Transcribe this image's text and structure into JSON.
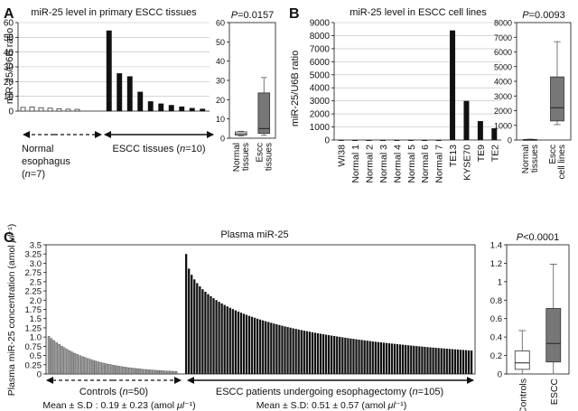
{
  "panel_labels": {
    "a": "A",
    "b": "B",
    "c": "C"
  },
  "chart_data": [
    {
      "id": "A-bar",
      "type": "bar",
      "title": "miR-25 level in primary ESCC tissues",
      "ylabel": "miR-25/U6B ratio",
      "ylim": [
        0,
        60
      ],
      "yticks": [
        0,
        10,
        20,
        30,
        40,
        50,
        60
      ],
      "grid": true,
      "series": [
        {
          "name": "Normal esophagus",
          "values": [
            2.5,
            2.8,
            2.3,
            2.0,
            1.6,
            1.3,
            1.2
          ],
          "fill": "#ffffff"
        },
        {
          "name": "ESCC tissues",
          "values": [
            54.5,
            25.5,
            23.5,
            13.0,
            6.5,
            5.0,
            4.0,
            3.0,
            2.0,
            1.5
          ],
          "fill": "#111111"
        }
      ],
      "group_labels": [
        {
          "text": "Normal",
          "prefix": "",
          "italic": "",
          "suffix": ""
        },
        {
          "text": "esophagus",
          "prefix": "",
          "italic": "",
          "suffix": ""
        },
        {
          "text": "",
          "prefix": "(",
          "italic": "n",
          "suffix": "=7)"
        },
        {
          "text": "",
          "prefix": "ESCC tissues (",
          "italic": "n",
          "suffix": "=10)"
        }
      ]
    },
    {
      "id": "A-box",
      "type": "box",
      "title_prefix": "",
      "title_italic": "P",
      "title_suffix": "=0.0157",
      "ylim": [
        0,
        60
      ],
      "yticks": [
        0,
        10,
        20,
        30,
        40,
        50,
        60
      ],
      "categories": [
        "Normal tissues",
        "Escc tissues"
      ],
      "category_lines": [
        [
          "Normal",
          "tissues"
        ],
        [
          "Escc",
          "tissues"
        ]
      ],
      "boxes": [
        {
          "name": "Normal tissues",
          "whisker_low": 1.2,
          "q1": 1.6,
          "median": 2.3,
          "q3": 3.3,
          "whisker_high": 3.6,
          "fill": "#ffffff"
        },
        {
          "name": "Escc tissues",
          "whisker_low": 1.5,
          "q1": 2.5,
          "median": 5.0,
          "q3": 23.5,
          "whisker_high": 31.5,
          "fill": "#777777"
        }
      ]
    },
    {
      "id": "B-bar",
      "type": "bar",
      "title": "miR-25 level in ESCC cell lines",
      "ylabel": "miR-25/U6B ratio",
      "ylim": [
        0,
        9000
      ],
      "yticks": [
        0,
        1000,
        2000,
        3000,
        4000,
        5000,
        6000,
        7000,
        8000,
        9000
      ],
      "grid": true,
      "categories": [
        "WI38",
        "Normal 1",
        "Normal 2",
        "Normal 3",
        "Normal 4",
        "Normal 5",
        "Normal 6",
        "Normal 7",
        "TE13",
        "KYSE70",
        "TE9",
        "TE2"
      ],
      "values": [
        10,
        5,
        5,
        5,
        5,
        5,
        5,
        5,
        8400,
        3000,
        1450,
        900
      ]
    },
    {
      "id": "B-box",
      "type": "box",
      "title_prefix": "",
      "title_italic": "P",
      "title_suffix": "=0.0093",
      "ylim": [
        0,
        8000
      ],
      "yticks": [
        0,
        1000,
        2000,
        3000,
        4000,
        5000,
        6000,
        7000,
        8000
      ],
      "categories": [
        "Normal tissues",
        "Escc cell lines"
      ],
      "category_lines": [
        [
          "Normal",
          "tissues"
        ],
        [
          "Escc",
          "cell lines"
        ]
      ],
      "boxes": [
        {
          "name": "Normal tissues",
          "whisker_low": 0,
          "q1": 0,
          "median": 10,
          "q3": 40,
          "whisker_high": 60,
          "fill": "#ffffff"
        },
        {
          "name": "Escc cell lines",
          "whisker_low": 1050,
          "q1": 1300,
          "median": 2200,
          "q3": 4300,
          "whisker_high": 6700,
          "fill": "#777777"
        }
      ]
    },
    {
      "id": "C-bar",
      "type": "bar",
      "title": "Plasma miR-25",
      "ylabel_prefix": "Plasma miR-25 concentration (amol ",
      "ylabel_italic": "μl",
      "ylabel_suffix": "⁻¹)",
      "ylim": [
        0,
        3.5
      ],
      "yticks": [
        0,
        0.25,
        0.5,
        0.75,
        1.0,
        1.25,
        1.5,
        1.75,
        2.0,
        2.25,
        2.5,
        2.75,
        3.0,
        3.25,
        3.5
      ],
      "ytick_labels": [
        "0",
        "0.25",
        "0.5",
        "0.75",
        "1.0",
        "1.25",
        "1.5",
        "1.75",
        "2.0",
        "2.25",
        "2.5",
        "2.75",
        "3.0",
        "3.25",
        "3.5"
      ],
      "series": [
        {
          "name": "Controls",
          "n": 50,
          "max": 1.02,
          "min": 0.02,
          "decay": 3.0,
          "fill": "#999999"
        },
        {
          "name": "ESCC patients undergoing esophagectomy",
          "n": 105,
          "max": 3.25,
          "min": 0.05,
          "decay": 1.7,
          "fill": "#111111"
        }
      ],
      "group_labels": [
        {
          "prefix": "Controls (",
          "italic": "n",
          "suffix": "=50)"
        },
        {
          "prefix": "ESCC patients undergoing esophagectomy (",
          "italic": "n",
          "suffix": "=105)"
        }
      ],
      "summaries": [
        {
          "prefix": "Mean ± S.D : 0.19 ± 0.23 (amol ",
          "italic": "μl",
          "suffix": "⁻¹)"
        },
        {
          "prefix": "Mean ± S.D: 0.51 ± 0.57 (amol ",
          "italic": "μl",
          "suffix": "⁻¹)"
        }
      ]
    },
    {
      "id": "C-box",
      "type": "box",
      "title_prefix": "",
      "title_italic": "P",
      "title_suffix": "<0.0001",
      "ylim": [
        0,
        1.4
      ],
      "yticks": [
        0,
        0.2,
        0.4,
        0.6,
        0.8,
        1.0,
        1.2,
        1.4
      ],
      "ytick_labels": [
        "0",
        "0.2",
        "0.4",
        "0.6",
        "0.8",
        "1",
        "1.2",
        "1.4"
      ],
      "categories": [
        "Controls",
        "ESCC"
      ],
      "boxes": [
        {
          "name": "Controls",
          "whisker_low": 0.0,
          "q1": 0.05,
          "median": 0.12,
          "q3": 0.25,
          "whisker_high": 0.47,
          "fill": "#ffffff"
        },
        {
          "name": "ESCC",
          "whisker_low": 0.0,
          "q1": 0.13,
          "median": 0.33,
          "q3": 0.71,
          "whisker_high": 1.19,
          "fill": "#777777"
        }
      ]
    }
  ]
}
